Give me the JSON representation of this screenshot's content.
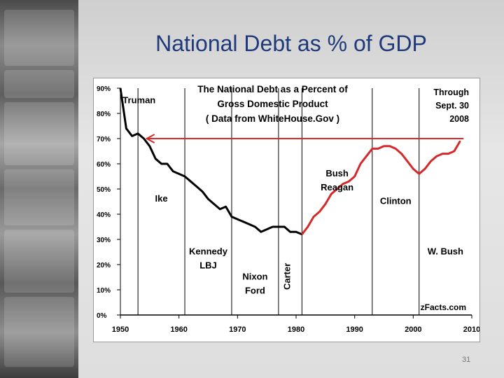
{
  "slide": {
    "title": "National Debt as % of GDP",
    "number": "31"
  },
  "chart_data": {
    "type": "line",
    "title_lines": [
      "The National Debt as a Percent of",
      "Gross Domestic Product",
      "( Data from WhiteHouse.Gov )"
    ],
    "through_lines": [
      "Through",
      "Sept. 30",
      "2008"
    ],
    "source": "zFacts.com",
    "xlim": [
      1950,
      2010
    ],
    "ylim": [
      0,
      90
    ],
    "x_ticks": [
      "1950",
      "1960",
      "1970",
      "1980",
      "1990",
      "2000",
      "2010"
    ],
    "y_ticks": [
      "0%",
      "10%",
      "20%",
      "30%",
      "40%",
      "50%",
      "60%",
      "70%",
      "80%",
      "90%"
    ],
    "era_dividers": [
      1953,
      1961,
      1969,
      1977,
      1981,
      1993,
      2001
    ],
    "era_labels": [
      {
        "lines": [
          "Truman"
        ],
        "x": 1953.2,
        "y": 84
      },
      {
        "lines": [
          "Ike"
        ],
        "x": 1957,
        "y": 45
      },
      {
        "lines": [
          "Kennedy",
          "LBJ"
        ],
        "x": 1965,
        "y": 24
      },
      {
        "lines": [
          "Nixon",
          "Ford"
        ],
        "x": 1973,
        "y": 14
      },
      {
        "lines": [
          "Carter"
        ],
        "x": 1979,
        "y": 10,
        "vertical": true
      },
      {
        "lines": [
          "Bush",
          "Reagan"
        ],
        "x": 1987,
        "y": 55
      },
      {
        "lines": [
          "Clinton"
        ],
        "x": 1997,
        "y": 44
      },
      {
        "lines": [
          "W. Bush"
        ],
        "x": 2005.5,
        "y": 24
      }
    ],
    "reference_line": {
      "from_x": 2008.6,
      "to_x": 1954.5,
      "y": 70
    },
    "series": [
      {
        "name": "decline",
        "color": "#000000",
        "x": [
          1950,
          1951,
          1952,
          1953,
          1954,
          1955,
          1956,
          1957,
          1958,
          1959,
          1960,
          1961,
          1962,
          1963,
          1964,
          1965,
          1966,
          1967,
          1968,
          1969,
          1970,
          1971,
          1972,
          1973,
          1974,
          1975,
          1976,
          1977,
          1978,
          1979,
          1980,
          1981
        ],
        "y": [
          90,
          74,
          71,
          72,
          70,
          67,
          62,
          60,
          60,
          57,
          56,
          55,
          53,
          51,
          49,
          46,
          44,
          42,
          43,
          39,
          38,
          37,
          36,
          35,
          33,
          34,
          35,
          35,
          35,
          33,
          33,
          32
        ]
      },
      {
        "name": "rise",
        "color": "#d42a2a",
        "x": [
          1981,
          1982,
          1983,
          1984,
          1985,
          1986,
          1987,
          1988,
          1989,
          1990,
          1991,
          1992,
          1993,
          1994,
          1995,
          1996,
          1997,
          1998,
          1999,
          2000,
          2001,
          2002,
          2003,
          2004,
          2005,
          2006,
          2007,
          2008
        ],
        "y": [
          32,
          35,
          39,
          41,
          44,
          48,
          50,
          52,
          53,
          55,
          60,
          63,
          66,
          66,
          67,
          67,
          66,
          64,
          61,
          58,
          56,
          58,
          61,
          63,
          64,
          64,
          65,
          69
        ]
      }
    ]
  }
}
